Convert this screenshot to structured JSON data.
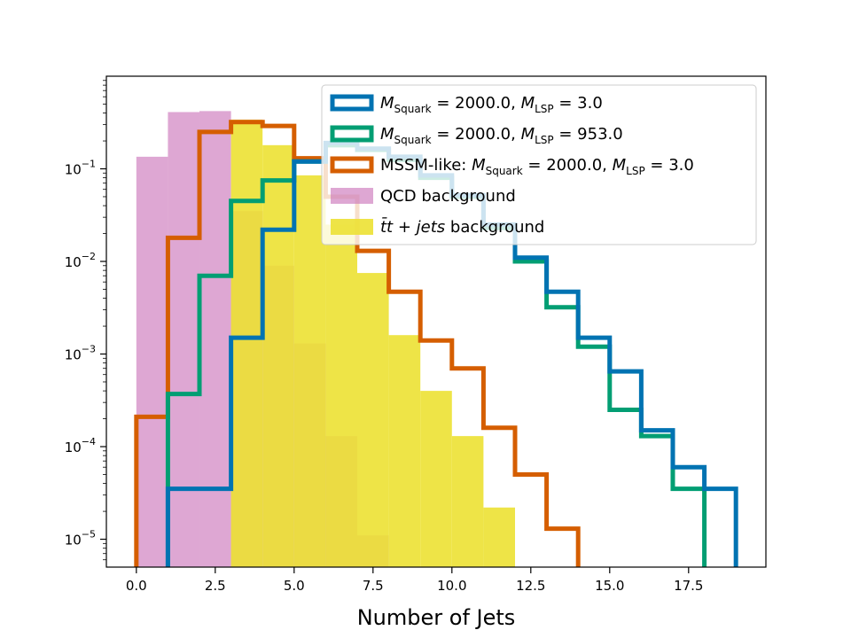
{
  "chart_data": {
    "type": "histogram",
    "xlabel": "Number of Jets",
    "ylabel": "",
    "xlim": [
      -0.95,
      19.95
    ],
    "ylim": [
      5e-06,
      1.0
    ],
    "yscale": "log",
    "x_ticks": [
      0.0,
      2.5,
      5.0,
      7.5,
      10.0,
      12.5,
      15.0,
      17.5
    ],
    "x_tick_labels": [
      "0.0",
      "2.5",
      "5.0",
      "7.5",
      "10.0",
      "12.5",
      "15.0",
      "17.5"
    ],
    "y_ticks": [
      1e-05,
      0.0001,
      0.001,
      0.01,
      0.1
    ],
    "y_tick_labels": [
      {
        "base": "10",
        "exp": "−5"
      },
      {
        "base": "10",
        "exp": "−4"
      },
      {
        "base": "10",
        "exp": "−3"
      },
      {
        "base": "10",
        "exp": "−2"
      },
      {
        "base": "10",
        "exp": "−1"
      }
    ],
    "legend_position": "top-right",
    "series": [
      {
        "name": "QCD background",
        "kind": "filled",
        "color": "#cc78bc",
        "opacity": 0.65,
        "bin_edges": [
          0,
          1,
          2,
          3,
          4,
          5,
          6,
          7,
          8
        ],
        "values": [
          0.135,
          0.41,
          0.42,
          0.035,
          0.009,
          0.0013,
          0.00013,
          1.1e-05
        ]
      },
      {
        "name": "tt + jets background",
        "kind": "filled",
        "color": "#ece133",
        "opacity": 0.9,
        "bin_edges": [
          0,
          1,
          2,
          3,
          4,
          5,
          6,
          7,
          8,
          9,
          10,
          11,
          12
        ],
        "values": [
          5e-06,
          5e-06,
          5e-06,
          0.34,
          0.18,
          0.085,
          0.025,
          0.0075,
          0.0016,
          0.0004,
          0.00013,
          2.2e-05
        ]
      },
      {
        "name": "M_Squark = 2000.0, M_LSP = 3.0",
        "kind": "step",
        "color": "#0173b2",
        "bin_edges": [
          1,
          2,
          3,
          4,
          5,
          6,
          7,
          8,
          9,
          10,
          11,
          12,
          13,
          14,
          15,
          16,
          17,
          18,
          19
        ],
        "values": [
          3.5e-05,
          3.5e-05,
          0.0015,
          0.022,
          0.12,
          0.19,
          0.165,
          0.135,
          0.085,
          0.052,
          0.025,
          0.011,
          0.0047,
          0.0015,
          0.00065,
          0.00015,
          6e-05,
          3.5e-05
        ]
      },
      {
        "name": "M_Squark = 2000.0, M_LSP = 953.0",
        "kind": "step",
        "color": "#029e73",
        "bin_edges": [
          1,
          2,
          3,
          4,
          5,
          6,
          7,
          8,
          9,
          10,
          11,
          12,
          13,
          14,
          15,
          16,
          17,
          18
        ],
        "values": [
          0.00037,
          0.007,
          0.045,
          0.075,
          0.12,
          0.18,
          0.16,
          0.125,
          0.08,
          0.05,
          0.023,
          0.01,
          0.0032,
          0.0012,
          0.00025,
          0.00013,
          3.5e-05
        ]
      },
      {
        "name": "MSSM-like: M_Squark = 2000.0, M_LSP = 3.0",
        "kind": "step",
        "color": "#d55e00",
        "bin_edges": [
          0,
          1,
          2,
          3,
          4,
          5,
          6,
          7,
          8,
          9,
          10,
          11,
          12,
          13,
          14
        ],
        "values": [
          0.00021,
          0.018,
          0.25,
          0.32,
          0.29,
          0.13,
          0.05,
          0.013,
          0.0047,
          0.0014,
          0.0007,
          0.00016,
          5e-05,
          1.3e-05
        ]
      }
    ],
    "legend": [
      {
        "series": 2,
        "kind": "step",
        "color": "#0173b2",
        "prefix": "",
        "sym1": "M",
        "sub1": "Squark",
        "mid": " = 2000.0, ",
        "sym2": "M",
        "sub2": "LSP",
        "suffix": " = 3.0"
      },
      {
        "series": 3,
        "kind": "step",
        "color": "#029e73",
        "prefix": "",
        "sym1": "M",
        "sub1": "Squark",
        "mid": " = 2000.0, ",
        "sym2": "M",
        "sub2": "LSP",
        "suffix": " = 953.0"
      },
      {
        "series": 4,
        "kind": "step",
        "color": "#d55e00",
        "prefix": "MSSM-like: ",
        "sym1": "M",
        "sub1": "Squark",
        "mid": " = 2000.0, ",
        "sym2": "M",
        "sub2": "LSP",
        "suffix": " = 3.0"
      },
      {
        "series": 0,
        "kind": "filled",
        "color": "#cc78bc",
        "label": "QCD background"
      },
      {
        "series": 1,
        "kind": "filled",
        "color": "#ece133",
        "label_math": "t̄t",
        "label_plus": " + ",
        "label_jets": "jets",
        "label_rest": " background"
      }
    ]
  }
}
